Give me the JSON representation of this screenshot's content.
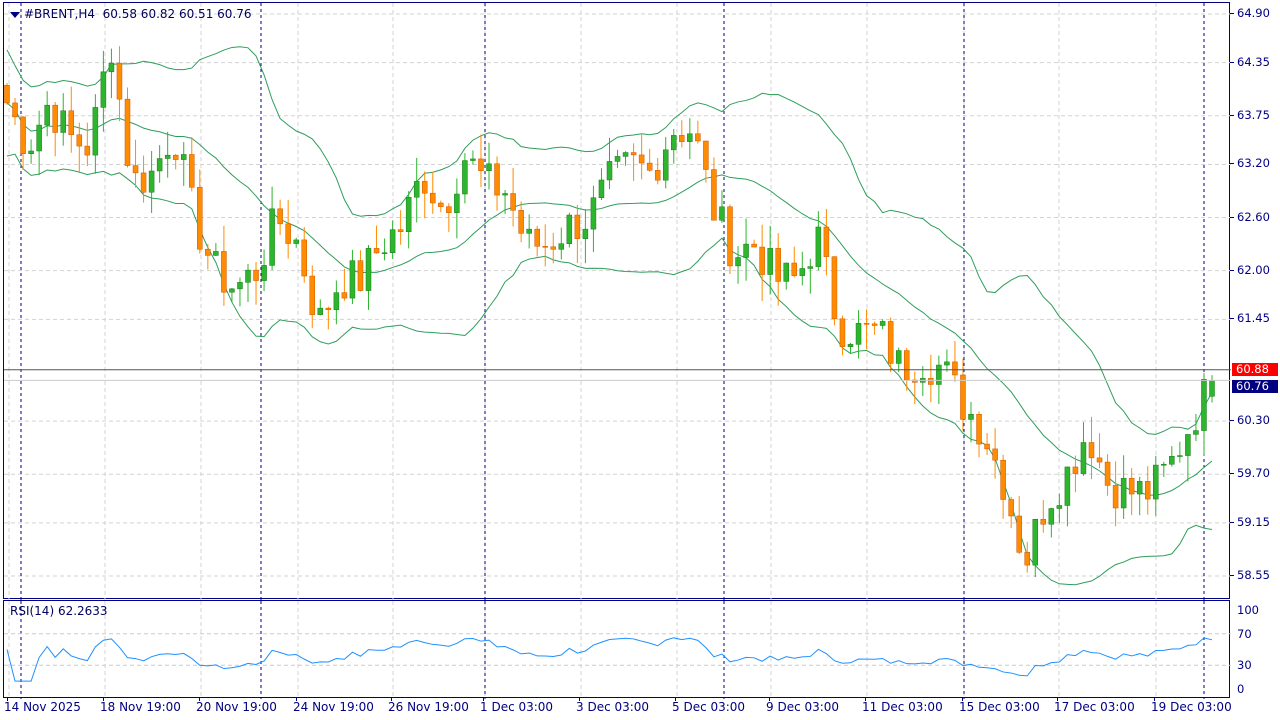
{
  "header": {
    "symbol": "#BRENT,H4",
    "ohlc": "60.58 60.82 60.51 60.76"
  },
  "rsi": {
    "label": "RSI(14) 62.2633",
    "levels": [
      "100",
      "70",
      "30",
      "0"
    ]
  },
  "price_axis": [
    "64.90",
    "64.35",
    "63.75",
    "63.20",
    "62.60",
    "62.00",
    "61.45",
    "60.30",
    "59.70",
    "59.15",
    "58.55"
  ],
  "ask_tag": "60.88",
  "bid_tag": "60.76",
  "time_axis": [
    "14 Nov 2025",
    "18 Nov 19:00",
    "20 Nov 19:00",
    "24 Nov 19:00",
    "26 Nov 19:00",
    "1 Dec 03:00",
    "3 Dec 03:00",
    "5 Dec 03:00",
    "9 Dec 03:00",
    "11 Dec 03:00",
    "15 Dec 03:00",
    "17 Dec 03:00",
    "19 Dec 03:00"
  ],
  "colors": {
    "bull": "#2db52d",
    "bear": "#ff8c00",
    "band": "#2e9e5a",
    "rsi": "#1e90ff",
    "ask": "#ff0000",
    "bid": "#000080"
  },
  "chart_data": {
    "type": "candlestick",
    "symbol": "#BRENT",
    "timeframe": "H4",
    "ylim": [
      58.4,
      65.0
    ],
    "approx_close_path": [
      63.9,
      63.4,
      63.9,
      63.5,
      63.4,
      64.6,
      63.0,
      63.1,
      63.6,
      62.6,
      62.0,
      61.8,
      62.0,
      62.6,
      62.3,
      61.4,
      61.9,
      61.9,
      62.3,
      62.5,
      63.1,
      62.7,
      63.3,
      63.0,
      62.9,
      62.3,
      62.3,
      62.5,
      62.6,
      63.0,
      63.2,
      63.1,
      63.6,
      63.6,
      62.7,
      62.2,
      62.3,
      61.9,
      61.9,
      62.4,
      61.4,
      61.3,
      61.3,
      60.9,
      61.0,
      60.9,
      60.5,
      60.2,
      59.6,
      58.7,
      59.4,
      59.7,
      60.2,
      59.6,
      59.5,
      59.5,
      59.8,
      60.3,
      60.76
    ],
    "indicators": [
      "Bollinger Bands(20,2)",
      "RSI(14)"
    ]
  }
}
